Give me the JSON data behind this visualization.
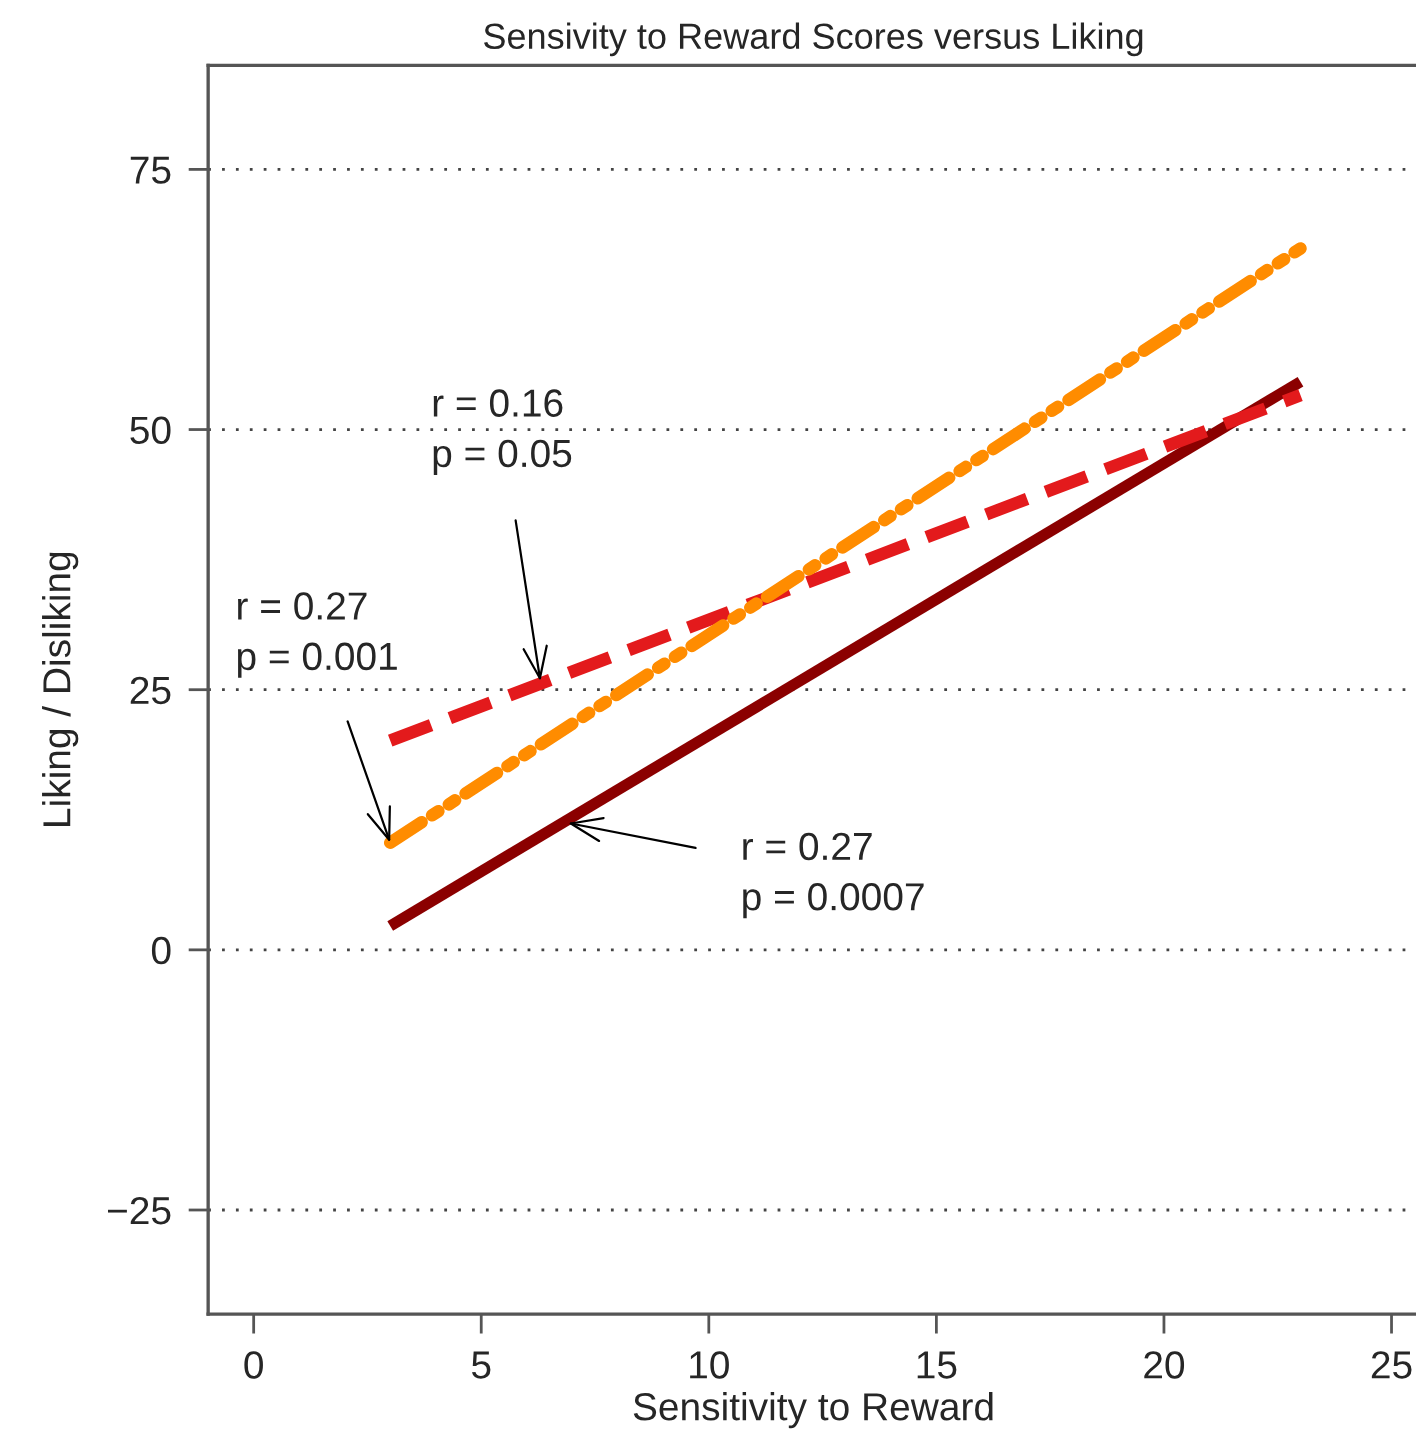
{
  "chart_data": {
    "type": "line",
    "title": "Sensivity to Reward Scores versus Liking",
    "xlabel": "Sensitivity to Reward",
    "ylabel": "Liking / Disliking",
    "x": [
      3,
      23
    ],
    "xlim": [
      -1,
      25.6
    ],
    "xticks": [
      0,
      5,
      10,
      15,
      20,
      25
    ],
    "ylim": [
      -35,
      85
    ],
    "yticks": [
      -25,
      0,
      25,
      50,
      75
    ],
    "grid": "y",
    "marker": "none",
    "series": [
      {
        "color": "#8b0000",
        "values": [
          2.3,
          54.6
        ],
        "line_style": "solid"
      },
      {
        "color": "#e31a1c",
        "values": [
          20.1,
          53.3
        ],
        "line_style": "dashed"
      },
      {
        "color": "#ff8c00",
        "values": [
          10.3,
          67.4
        ],
        "line_style": "dashdot"
      }
    ],
    "annotations": [
      {
        "text": "r = 0.16\np = 0.05",
        "x": 6.3,
        "y": 25.8
      },
      {
        "text": "r = 0.27\np = 0.001",
        "x": 3,
        "y": 10.3
      },
      {
        "text": "r = 0.27\np = 0.0007",
        "x": 6.9,
        "y": 12.2
      }
    ]
  }
}
